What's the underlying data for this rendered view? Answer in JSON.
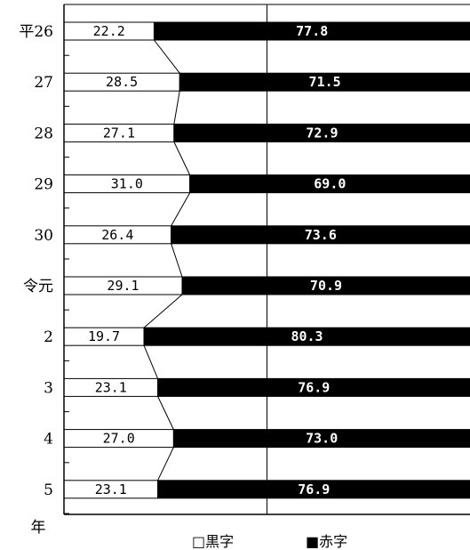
{
  "chart_data": {
    "type": "bar",
    "stacked": true,
    "orientation": "horizontal",
    "percent": true,
    "categories": [
      "平26",
      "27",
      "28",
      "29",
      "30",
      "令元",
      "2",
      "3",
      "4",
      "5"
    ],
    "series": [
      {
        "name": "黒字",
        "values": [
          22.2,
          28.5,
          27.1,
          31.0,
          26.4,
          29.1,
          19.7,
          23.1,
          27.0,
          23.1
        ],
        "labels": [
          "22.2",
          "28.5",
          "27.1",
          "31.0",
          "26.4",
          "29.1",
          "19.7",
          "23.1",
          "27.0",
          "23.1"
        ],
        "color": "#ffffff"
      },
      {
        "name": "赤字",
        "values": [
          77.8,
          71.5,
          72.9,
          69.0,
          73.6,
          70.9,
          80.3,
          76.9,
          73.0,
          76.9
        ],
        "labels": [
          "77.8",
          "71.5",
          "72.9",
          "69.0",
          "73.6",
          "70.9",
          "80.3",
          "76.9",
          "73.0",
          "76.9"
        ],
        "color": "#000000"
      }
    ],
    "xlim": [
      0,
      100
    ],
    "y_axis_unit": "年",
    "legend": {
      "position": "bottom",
      "items": [
        "□黒字",
        "■赤字"
      ]
    },
    "grid": "vertical line at 50%"
  }
}
